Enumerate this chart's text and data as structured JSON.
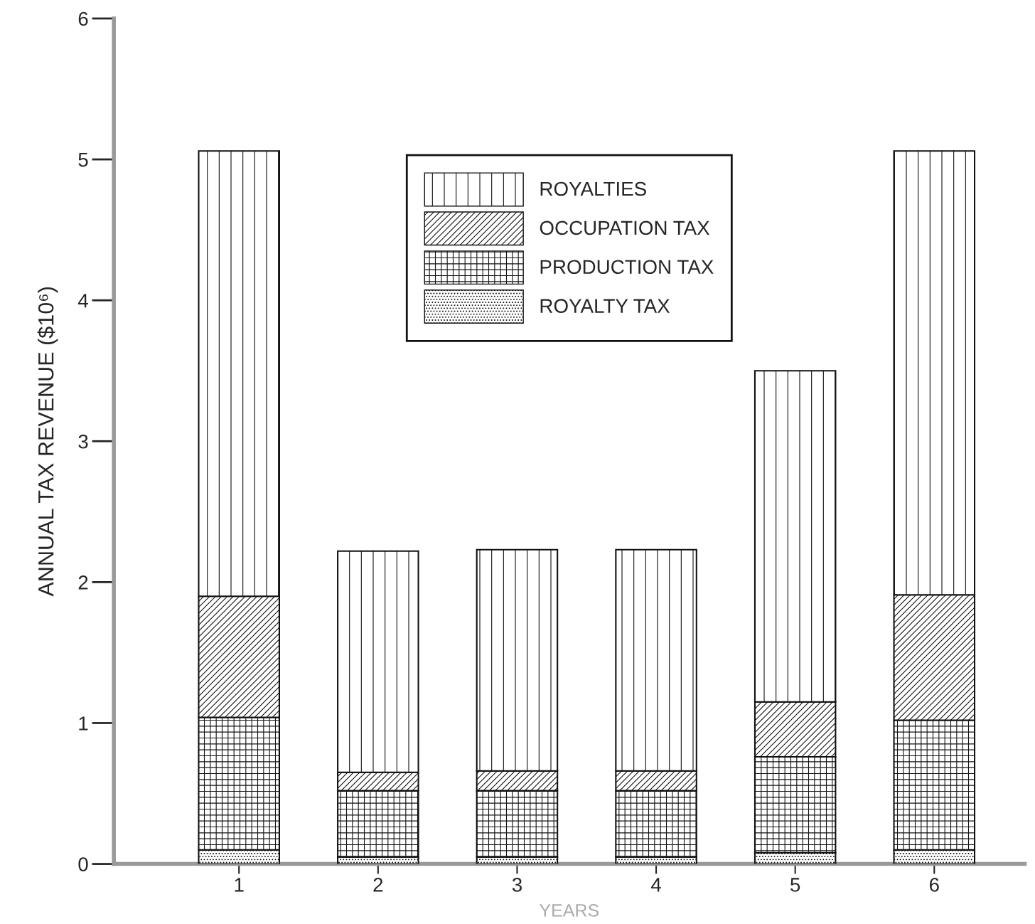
{
  "chart_data": {
    "type": "bar",
    "stacked": true,
    "xlabel": "YEARS",
    "ylabel": "ANNUAL TAX REVENUE ($10⁶)",
    "categories": [
      "1",
      "2",
      "3",
      "4",
      "5",
      "6"
    ],
    "series": [
      {
        "name": "ROYALTY TAX",
        "color": "#111111",
        "values": [
          0.1,
          0.05,
          0.05,
          0.05,
          0.08,
          0.1
        ]
      },
      {
        "name": "PRODUCTION TAX",
        "color": "#111111",
        "values": [
          0.94,
          0.47,
          0.47,
          0.47,
          0.68,
          0.92
        ]
      },
      {
        "name": "OCCUPATION TAX",
        "color": "#111111",
        "values": [
          0.86,
          0.13,
          0.14,
          0.14,
          0.39,
          0.89
        ]
      },
      {
        "name": "ROYALTIES",
        "color": "#111111",
        "values": [
          3.16,
          1.57,
          1.57,
          1.57,
          2.35,
          3.15
        ]
      }
    ],
    "ylim": [
      0,
      6
    ],
    "yticks": [
      0,
      1,
      2,
      3,
      4,
      5,
      6
    ],
    "grid": false,
    "legend": "top"
  }
}
